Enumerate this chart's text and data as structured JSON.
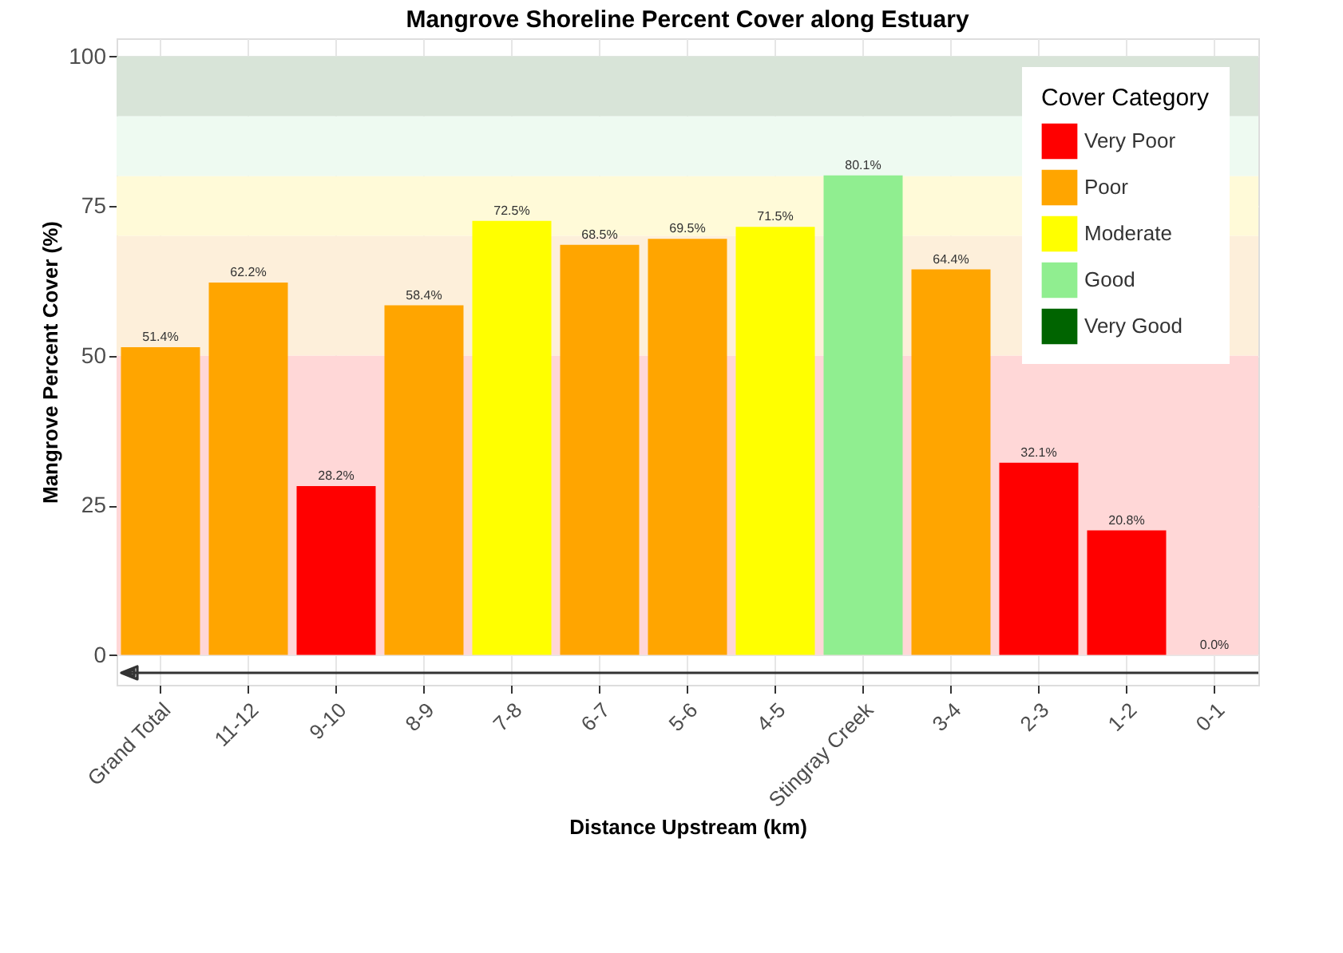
{
  "chart_data": {
    "type": "bar",
    "title": "Mangrove Shoreline Percent Cover along Estuary",
    "xlabel": "Distance Upstream (km)",
    "ylabel": "Mangrove Percent Cover (%)",
    "legend_title": "Cover Category",
    "categories": [
      "Grand Total",
      "11-12",
      "9-10",
      "8-9",
      "7-8",
      "6-7",
      "5-6",
      "4-5",
      "Stingray Creek",
      "3-4",
      "2-3",
      "1-2",
      "0-1"
    ],
    "series": [
      {
        "name": "Very Poor",
        "color": "#ff0000",
        "values": [
          null,
          null,
          28.2,
          null,
          null,
          null,
          null,
          null,
          null,
          null,
          32.1,
          20.8,
          0.0
        ]
      },
      {
        "name": "Poor",
        "color": "#ffa500",
        "values": [
          51.4,
          62.2,
          null,
          58.4,
          null,
          68.5,
          69.5,
          null,
          null,
          64.4,
          null,
          null,
          null
        ]
      },
      {
        "name": "Moderate",
        "color": "#ffff00",
        "values": [
          null,
          null,
          null,
          null,
          72.5,
          null,
          null,
          71.5,
          null,
          null,
          null,
          null,
          null
        ]
      },
      {
        "name": "Good",
        "color": "#90ee90",
        "values": [
          null,
          null,
          null,
          null,
          null,
          null,
          null,
          null,
          80.1,
          null,
          null,
          null,
          null
        ]
      },
      {
        "name": "Very Good",
        "color": "#006400",
        "values": [
          null,
          null,
          null,
          null,
          null,
          null,
          null,
          null,
          null,
          null,
          null,
          null,
          null
        ]
      }
    ],
    "value_labels": [
      "51.4%",
      "62.2%",
      "28.2%",
      "58.4%",
      "72.5%",
      "68.5%",
      "69.5%",
      "71.5%",
      "80.1%",
      "64.4%",
      "32.1%",
      "20.8%",
      "0.0%"
    ],
    "bands": [
      {
        "axis": "y",
        "from": 0,
        "to": 50,
        "color": "#ffd7d7"
      },
      {
        "axis": "y",
        "from": 50,
        "to": 70,
        "color": "#fdefda"
      },
      {
        "axis": "y",
        "from": 70,
        "to": 80,
        "color": "#fffad8"
      },
      {
        "axis": "y",
        "from": 80,
        "to": 90,
        "color": "#eefaf1"
      },
      {
        "axis": "y",
        "from": 90,
        "to": 100,
        "color": "#d8e4d8"
      }
    ],
    "ref_lines": [
      {
        "axis": "y",
        "value": -3,
        "color": "#333333",
        "line_style": "solid"
      }
    ],
    "ylim": [
      -5,
      103
    ],
    "yticks": [
      0,
      25,
      50,
      75,
      100
    ],
    "grid": true,
    "legend": "top right"
  }
}
